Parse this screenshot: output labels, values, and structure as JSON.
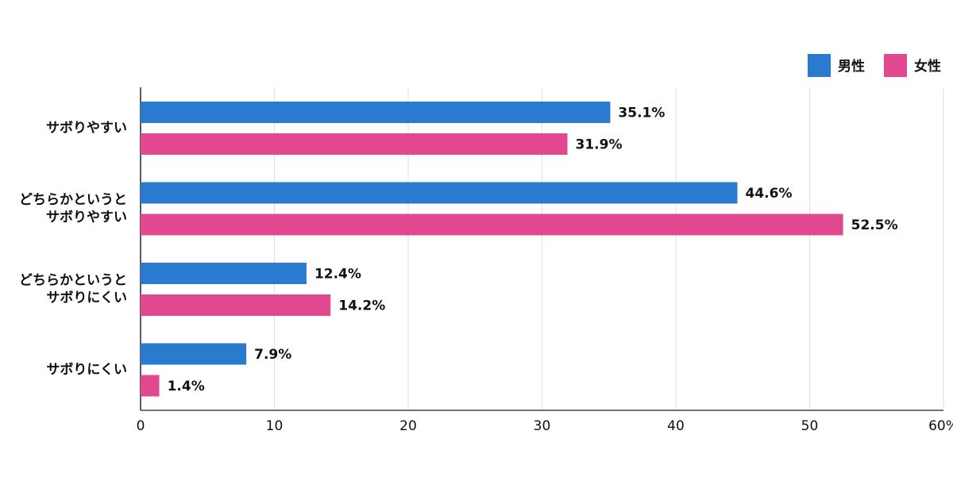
{
  "chart_data": {
    "type": "bar",
    "orientation": "horizontal",
    "categories": [
      "サボりやすい",
      "どちらかというと\nサボりやすい",
      "どちらかというと\nサボりにくい",
      "サボりにくい"
    ],
    "series": [
      {
        "name": "男性",
        "color": "#2a7bd0",
        "values": [
          35.1,
          44.6,
          12.4,
          7.9
        ],
        "value_labels": [
          "35.1%",
          "44.6%",
          "12.4%",
          "7.9%"
        ]
      },
      {
        "name": "女性",
        "color": "#e2488f",
        "values": [
          31.9,
          52.5,
          14.2,
          1.4
        ],
        "value_labels": [
          "31.9%",
          "52.5%",
          "14.2%",
          "1.4%"
        ]
      }
    ],
    "xlim": [
      0,
      60
    ],
    "xticks": [
      0,
      10,
      20,
      30,
      40,
      50,
      {
        "value": 60,
        "label": "60%"
      }
    ],
    "grid": true,
    "legend": "top-right"
  }
}
